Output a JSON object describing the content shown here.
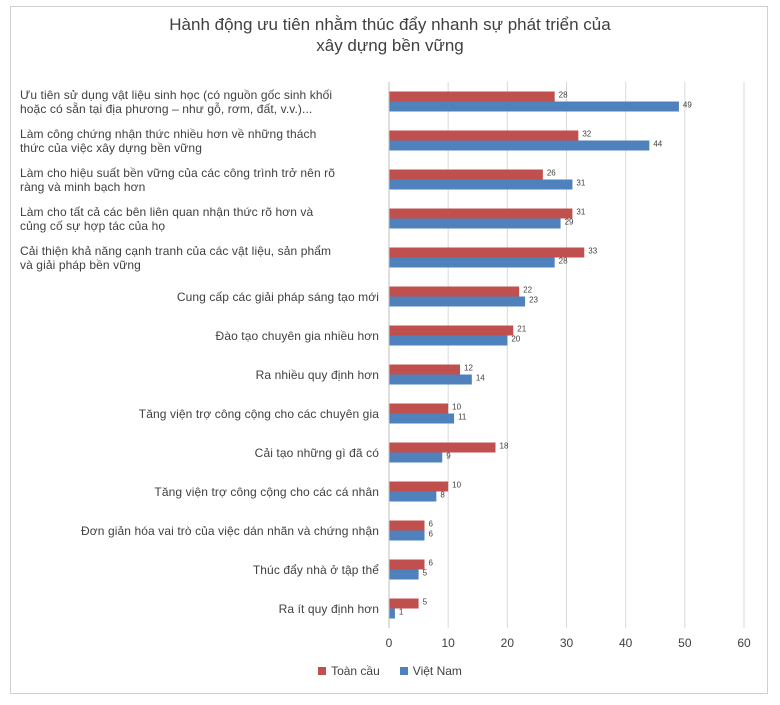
{
  "chart_data": {
    "type": "bar",
    "orientation": "horizontal",
    "title": [
      "Hành động ưu tiên nhằm thúc đẩy nhanh sự phát triển của",
      "xây dựng bền vững"
    ],
    "categories": [
      [
        "Ưu tiên sử dụng vật liệu sinh học (có nguồn gốc sinh khối",
        "hoặc có sẵn tại địa phương – như gỗ, rơm, đất, v.v.)..."
      ],
      [
        "Làm công chứng nhận thức nhiều hơn về những thách",
        "thức của việc xây dựng bền vững"
      ],
      [
        "Làm cho hiệu suất bền vững của các công trình trở nên rõ",
        "ràng và minh bạch hơn"
      ],
      [
        "Làm cho tất cả các bên liên quan nhận thức rõ hơn và",
        "củng cố sự hợp tác của họ"
      ],
      [
        "Cải thiện khả năng cạnh tranh của các vật liệu, sản phẩm",
        "và giải pháp bền vững"
      ],
      [
        "Cung cấp các giải pháp sáng tạo mới"
      ],
      [
        "Đào tạo chuyên gia nhiều hơn"
      ],
      [
        "Ra nhiều quy định hơn"
      ],
      [
        "Tăng viện trợ công cộng cho các chuyên gia"
      ],
      [
        "Cải tạo những gì đã có"
      ],
      [
        "Tăng viện trợ công cộng cho các cá nhân"
      ],
      [
        "Đơn giản hóa vai trò của việc dán nhãn và chứng nhận"
      ],
      [
        "Thúc đẩy nhà ở tập thể"
      ],
      [
        "Ra ít quy định hơn"
      ]
    ],
    "series": [
      {
        "name": "Toàn cầu",
        "color": "#c0504d",
        "values": [
          28,
          32,
          26,
          31,
          33,
          22,
          21,
          12,
          10,
          18,
          10,
          6,
          6,
          5
        ]
      },
      {
        "name": "Việt Nam",
        "color": "#4f81bd",
        "values": [
          49,
          44,
          31,
          29,
          28,
          23,
          20,
          14,
          11,
          9,
          8,
          6,
          5,
          1
        ]
      }
    ],
    "xlim": [
      0,
      60
    ],
    "xticks": [
      0,
      10,
      20,
      30,
      40,
      50,
      60
    ],
    "grid": true,
    "legend_position": "bottom"
  }
}
